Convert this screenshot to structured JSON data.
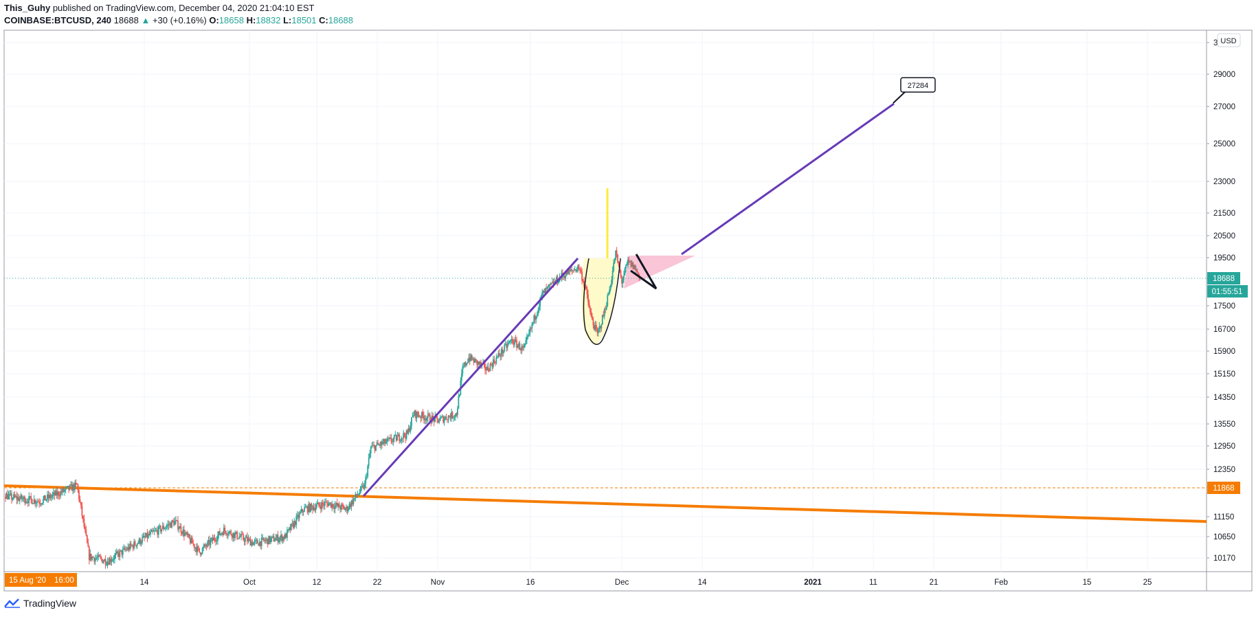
{
  "header": {
    "author": "This_Guhy",
    "published": "published on TradingView.com, December 04, 2020 21:04:10 EST",
    "symbol": "COINBASE:BTCUSD, 240",
    "last": "18688",
    "up_arrow": "▲",
    "change": "+30 (+0.16%)",
    "o_label": "O:",
    "o_value": "18658",
    "h_label": "H:",
    "h_value": "18832",
    "l_label": "L:",
    "l_value": "18501",
    "c_label": "C:",
    "c_value": "18688"
  },
  "footer": {
    "brand": "TradingView",
    "brand_icon": "tradingview-logo-icon"
  },
  "colors": {
    "up": "#26a69a",
    "down": "#ef5350",
    "orange": "#f57c00",
    "purple": "#673ab7",
    "yellow": "#ffeb3b",
    "pink": "#f8bbd0",
    "grid": "#f0f3fa"
  },
  "chart_data": {
    "type": "candlestick",
    "symbol": "COINBASE:BTCUSD",
    "interval": "240",
    "currency_label": "USD",
    "x_ticks": [
      "14",
      "Oct",
      "12",
      "22",
      "Nov",
      "16",
      "Dec",
      "14",
      "2021",
      "11",
      "21",
      "Feb",
      "15",
      "25"
    ],
    "y_ticks": [
      "3",
      "29000",
      "27000",
      "25000",
      "23000",
      "21500",
      "20500",
      "19500",
      "18688",
      "17500",
      "16700",
      "15900",
      "15150",
      "14350",
      "13550",
      "12950",
      "12350",
      "11868",
      "11150",
      "10650",
      "10170"
    ],
    "y_range": [
      9900,
      31000
    ],
    "y_scale": "log",
    "last_price": "18688",
    "countdown": "01:55:51",
    "horizontal_level": "11868",
    "crosshair_date": "15 Aug '20",
    "crosshair_time": "16:00",
    "target_label": "27284",
    "price_path_keypoints": [
      [
        "2020-08-15",
        11800
      ],
      [
        "2020-08-17",
        11900
      ],
      [
        "2020-08-19",
        11700
      ],
      [
        "2020-08-20",
        11850
      ],
      [
        "2020-08-23",
        11600
      ],
      [
        "2020-08-28",
        11500
      ],
      [
        "2020-09-03",
        11900
      ],
      [
        "2020-09-05",
        10200
      ],
      [
        "2020-09-08",
        10100
      ],
      [
        "2020-09-15",
        10700
      ],
      [
        "2020-09-19",
        11000
      ],
      [
        "2020-09-23",
        10300
      ],
      [
        "2020-09-27",
        10800
      ],
      [
        "2020-10-02",
        10500
      ],
      [
        "2020-10-07",
        10650
      ],
      [
        "2020-10-10",
        11300
      ],
      [
        "2020-10-14",
        11450
      ],
      [
        "2020-10-17",
        11300
      ],
      [
        "2020-10-20",
        11900
      ],
      [
        "2020-10-21",
        12900
      ],
      [
        "2020-10-24",
        13100
      ],
      [
        "2020-10-27",
        13300
      ],
      [
        "2020-10-28",
        13900
      ],
      [
        "2020-11-01",
        13700
      ],
      [
        "2020-11-04",
        13900
      ],
      [
        "2020-11-05",
        15300
      ],
      [
        "2020-11-06",
        15700
      ],
      [
        "2020-11-09",
        15300
      ],
      [
        "2020-11-13",
        16300
      ],
      [
        "2020-11-15",
        15950
      ],
      [
        "2020-11-18",
        18000
      ],
      [
        "2020-11-21",
        18700
      ],
      [
        "2020-11-24",
        19100
      ],
      [
        "2020-11-25",
        18300
      ],
      [
        "2020-11-26",
        17100
      ],
      [
        "2020-11-27",
        16500
      ],
      [
        "2020-11-28",
        17200
      ],
      [
        "2020-11-29",
        18200
      ],
      [
        "2020-11-30",
        19700
      ],
      [
        "2020-12-01",
        18500
      ],
      [
        "2020-12-02",
        19300
      ],
      [
        "2020-12-03",
        19100
      ],
      [
        "2020-12-04",
        18688
      ]
    ]
  }
}
